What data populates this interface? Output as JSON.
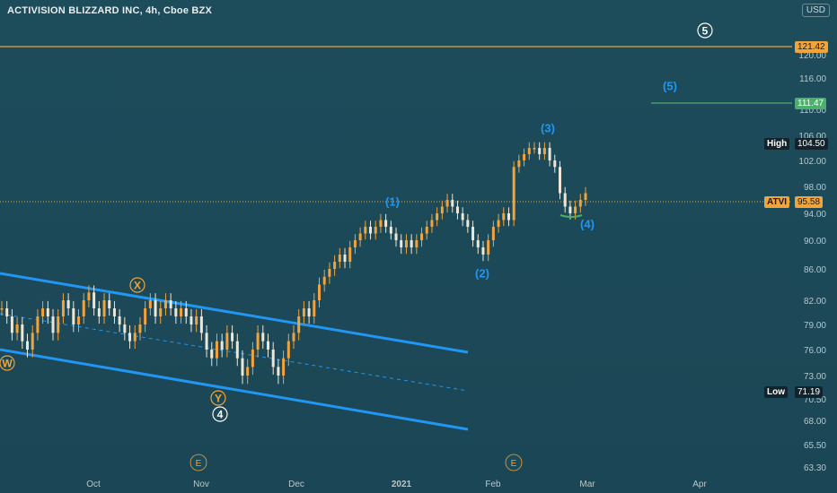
{
  "header": {
    "title": "ACTIVISION BLIZZARD INC, 4h, Cboe BZX",
    "currency": "USD"
  },
  "chart_data": {
    "type": "line",
    "title": "ACTIVISION BLIZZARD INC, 4h, Cboe BZX",
    "y_ticks": [
      "120.00",
      "116.00",
      "110.00",
      "106.00",
      "102.00",
      "98.00",
      "94.00",
      "90.00",
      "86.00",
      "82.00",
      "79.00",
      "76.00",
      "73.00",
      "70.50",
      "68.00",
      "65.50",
      "63.30"
    ],
    "x_ticks": [
      "Oct",
      "Nov",
      "Dec",
      "2021",
      "Feb",
      "Mar",
      "Apr"
    ],
    "price_lines": [
      {
        "value": "121.42",
        "color": "#f0a43a"
      },
      {
        "value": "111.47",
        "color": "#4caf6b"
      },
      {
        "value": "95.58",
        "color": "#f0a43a"
      }
    ],
    "stat_labels": [
      {
        "label": "High",
        "value": "104.50"
      },
      {
        "label": "Low",
        "value": "71.19"
      },
      {
        "label": "ATVI",
        "value": "95.58"
      }
    ],
    "wave_labels": [
      "W",
      "X",
      "Y",
      "4",
      "5",
      "(1)",
      "(2)",
      "(3)",
      "(4)",
      "(5)"
    ],
    "event_markers": [
      "E",
      "E"
    ],
    "series": [
      {
        "values": [
          81,
          80,
          78,
          79,
          77,
          76,
          78,
          80,
          81,
          80,
          78,
          80,
          82,
          81,
          79,
          80,
          82,
          83,
          81,
          80,
          82,
          81,
          80,
          79,
          78,
          77,
          78,
          79,
          81,
          82,
          80,
          81,
          82,
          81,
          80,
          81,
          80,
          79,
          80,
          78,
          76,
          75,
          77,
          76,
          78,
          77,
          75,
          73,
          74,
          76,
          78,
          77,
          76,
          74,
          73,
          75,
          77,
          78,
          80,
          81,
          80,
          82,
          84,
          85,
          86,
          87,
          88,
          87,
          89,
          90,
          91,
          92,
          91,
          92,
          93,
          92,
          91,
          90,
          89,
          90,
          89,
          90,
          91,
          92,
          93,
          94,
          95,
          96,
          95,
          94,
          93,
          92,
          90,
          89,
          88,
          90,
          92,
          93,
          94,
          93,
          101,
          102,
          103,
          104,
          104,
          103,
          104,
          102,
          101,
          97,
          95,
          94,
          95,
          96,
          97
        ]
      }
    ]
  }
}
